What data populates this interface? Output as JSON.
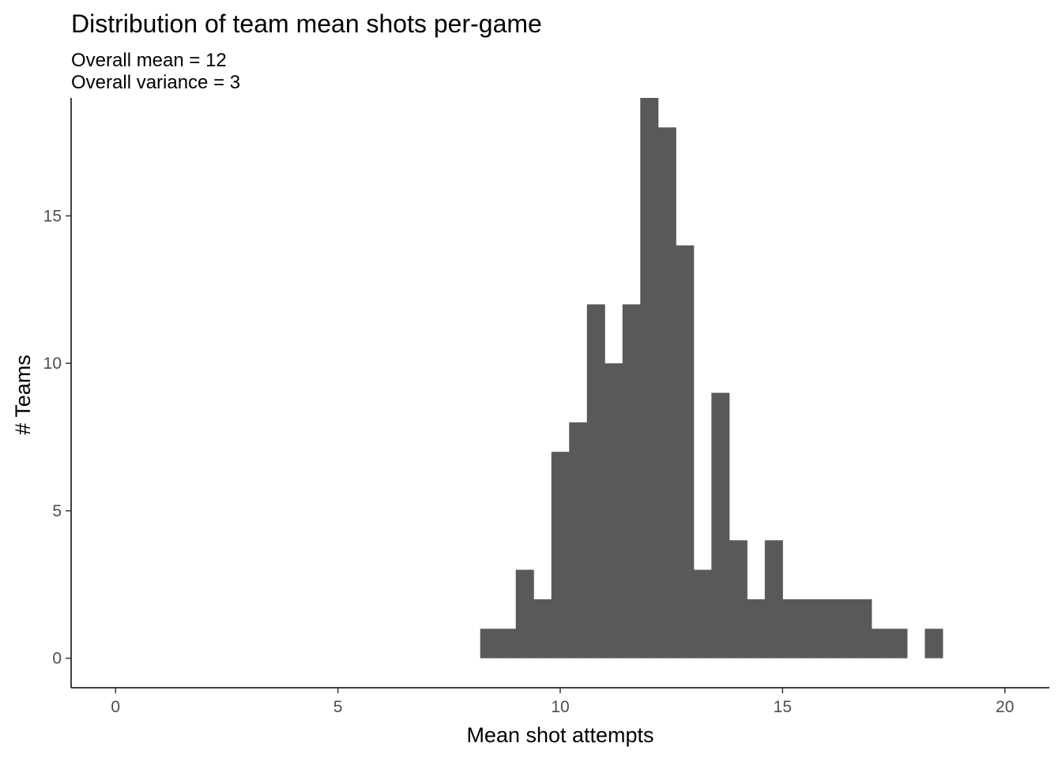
{
  "chart_data": {
    "type": "bar",
    "title": "Distribution of team mean shots per-game",
    "subtitle": [
      "Overall mean =  12",
      "Overall variance =  3"
    ],
    "xlabel": "Mean shot attempts",
    "ylabel": "# Teams",
    "xlim": [
      -1,
      21
    ],
    "ylim": [
      -1,
      19
    ],
    "x_ticks": [
      0,
      5,
      10,
      15,
      20
    ],
    "y_ticks": [
      0,
      5,
      10,
      15
    ],
    "grid": false,
    "bar_color": "#595959",
    "bins": [
      {
        "x0": 8.2,
        "x1": 8.6,
        "count": 1
      },
      {
        "x0": 8.6,
        "x1": 9.0,
        "count": 1
      },
      {
        "x0": 9.0,
        "x1": 9.4,
        "count": 3
      },
      {
        "x0": 9.4,
        "x1": 9.8,
        "count": 2
      },
      {
        "x0": 9.8,
        "x1": 10.2,
        "count": 7
      },
      {
        "x0": 10.2,
        "x1": 10.6,
        "count": 8
      },
      {
        "x0": 10.6,
        "x1": 11.0,
        "count": 12
      },
      {
        "x0": 11.0,
        "x1": 11.4,
        "count": 10
      },
      {
        "x0": 11.4,
        "x1": 11.8,
        "count": 12
      },
      {
        "x0": 11.8,
        "x1": 12.2,
        "count": 19
      },
      {
        "x0": 12.2,
        "x1": 12.6,
        "count": 18
      },
      {
        "x0": 12.6,
        "x1": 13.0,
        "count": 14
      },
      {
        "x0": 13.0,
        "x1": 13.4,
        "count": 3
      },
      {
        "x0": 13.4,
        "x1": 13.8,
        "count": 9
      },
      {
        "x0": 13.8,
        "x1": 14.2,
        "count": 4
      },
      {
        "x0": 14.2,
        "x1": 14.6,
        "count": 2
      },
      {
        "x0": 14.6,
        "x1": 15.0,
        "count": 4
      },
      {
        "x0": 15.0,
        "x1": 15.4,
        "count": 2
      },
      {
        "x0": 15.4,
        "x1": 15.8,
        "count": 2
      },
      {
        "x0": 15.8,
        "x1": 16.2,
        "count": 2
      },
      {
        "x0": 16.2,
        "x1": 16.6,
        "count": 2
      },
      {
        "x0": 16.6,
        "x1": 17.0,
        "count": 2
      },
      {
        "x0": 17.0,
        "x1": 17.4,
        "count": 1
      },
      {
        "x0": 17.4,
        "x1": 17.8,
        "count": 1
      },
      {
        "x0": 17.8,
        "x1": 18.2,
        "count": 0
      },
      {
        "x0": 18.2,
        "x1": 18.6,
        "count": 1
      }
    ]
  }
}
